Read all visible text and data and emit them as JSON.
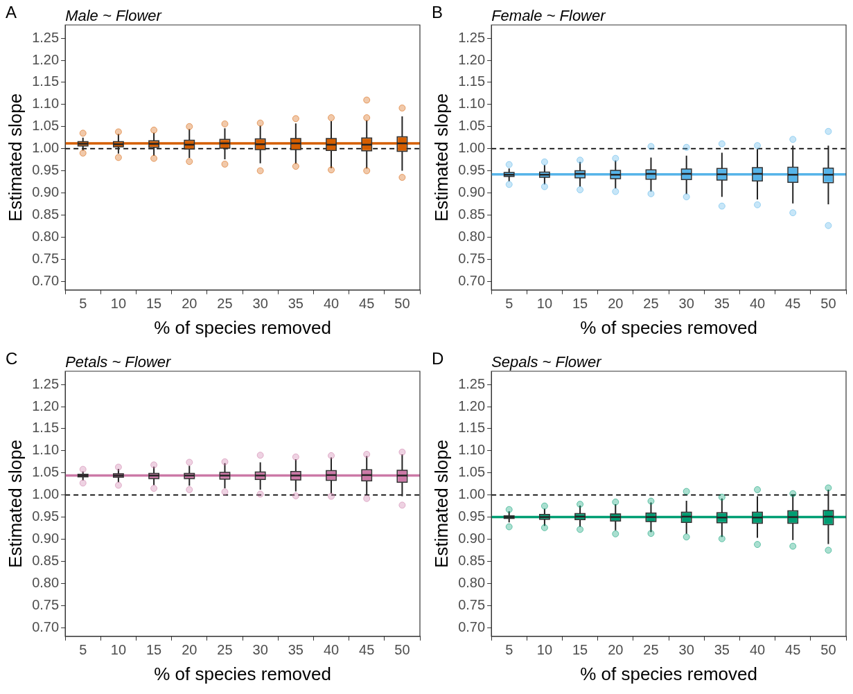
{
  "chart_data": [
    {
      "type": "box",
      "title": "Male ~ Flower",
      "annotations": [
        "A"
      ],
      "xlabel": "% of species removed",
      "ylabel": "Estimated slope",
      "categories": [
        "5",
        "10",
        "15",
        "20",
        "25",
        "30",
        "35",
        "40",
        "45",
        "50"
      ],
      "series": [
        {
          "color": "#d55e00",
          "boxes": [
            {
              "low": 0.996,
              "q1": 1.006,
              "median": 1.011,
              "q3": 1.016,
              "high": 1.025,
              "outliers": [
                1.035,
                0.99
              ]
            },
            {
              "low": 0.989,
              "q1": 1.004,
              "median": 1.01,
              "q3": 1.016,
              "high": 1.033,
              "outliers": [
                1.038,
                0.98
              ]
            },
            {
              "low": 0.984,
              "q1": 1.003,
              "median": 1.011,
              "q3": 1.018,
              "high": 1.036,
              "outliers": [
                1.042,
                0.978
              ]
            },
            {
              "low": 0.979,
              "q1": 0.999,
              "median": 1.009,
              "q3": 1.019,
              "high": 1.044,
              "outliers": [
                1.05,
                0.971
              ]
            },
            {
              "low": 0.976,
              "q1": 1.001,
              "median": 1.012,
              "q3": 1.021,
              "high": 1.046,
              "outliers": [
                1.056,
                0.965
              ]
            },
            {
              "low": 0.967,
              "q1": 0.998,
              "median": 1.01,
              "q3": 1.022,
              "high": 1.052,
              "outliers": [
                1.058,
                0.95
              ]
            },
            {
              "low": 0.966,
              "q1": 0.998,
              "median": 1.012,
              "q3": 1.023,
              "high": 1.057,
              "outliers": [
                1.068,
                0.96
              ]
            },
            {
              "low": 0.956,
              "q1": 0.996,
              "median": 1.009,
              "q3": 1.023,
              "high": 1.062,
              "outliers": [
                1.07,
                0.952
              ]
            },
            {
              "low": 0.955,
              "q1": 0.995,
              "median": 1.009,
              "q3": 1.024,
              "high": 1.064,
              "outliers": [
                1.11,
                1.07,
                0.95
              ]
            },
            {
              "low": 0.95,
              "q1": 0.994,
              "median": 1.012,
              "q3": 1.027,
              "high": 1.073,
              "outliers": [
                1.092,
                0.935
              ]
            }
          ]
        }
      ],
      "ylim": [
        0.68,
        1.28
      ],
      "yticks": [
        {
          "value": 0.7,
          "label": "0.70"
        },
        {
          "value": 0.75,
          "label": "0.75"
        },
        {
          "value": 0.8,
          "label": "0.80"
        },
        {
          "value": 0.85,
          "label": "0.85"
        },
        {
          "value": 0.9,
          "label": "0.90"
        },
        {
          "value": 0.95,
          "label": "0.95"
        },
        {
          "value": 1,
          "label": "1.00"
        },
        {
          "value": 1.05,
          "label": "1.05"
        },
        {
          "value": 1.1,
          "label": "1.10"
        },
        {
          "value": 1.15,
          "label": "1.15"
        },
        {
          "value": 1.2,
          "label": "1.20"
        },
        {
          "value": 1.25,
          "label": "1.25"
        }
      ],
      "ref_lines": [
        {
          "axis": "y",
          "value": 1.012,
          "color": "#d55e00",
          "line_style": "solid"
        },
        {
          "axis": "y",
          "value": 1,
          "color": "#000000",
          "line_style": "dashed"
        }
      ],
      "marker": "circle"
    },
    {
      "type": "box",
      "title": "Female ~ Flower",
      "annotations": [
        "B"
      ],
      "xlabel": "% of species removed",
      "ylabel": "Estimated slope",
      "categories": [
        "5",
        "10",
        "15",
        "20",
        "25",
        "30",
        "35",
        "40",
        "45",
        "50"
      ],
      "series": [
        {
          "color": "#56b4e9",
          "boxes": [
            {
              "low": 0.926,
              "q1": 0.937,
              "median": 0.941,
              "q3": 0.946,
              "high": 0.955,
              "outliers": [
                0.964,
                0.919
              ]
            },
            {
              "low": 0.919,
              "q1": 0.935,
              "median": 0.941,
              "q3": 0.947,
              "high": 0.963,
              "outliers": [
                0.97,
                0.914
              ]
            },
            {
              "low": 0.914,
              "q1": 0.934,
              "median": 0.943,
              "q3": 0.95,
              "high": 0.97,
              "outliers": [
                0.974,
                0.907
              ]
            },
            {
              "low": 0.91,
              "q1": 0.932,
              "median": 0.941,
              "q3": 0.951,
              "high": 0.973,
              "outliers": [
                0.978,
                0.903
              ]
            },
            {
              "low": 0.903,
              "q1": 0.931,
              "median": 0.943,
              "q3": 0.952,
              "high": 0.98,
              "outliers": [
                1.005,
                0.898
              ]
            },
            {
              "low": 0.897,
              "q1": 0.93,
              "median": 0.943,
              "q3": 0.954,
              "high": 0.984,
              "outliers": [
                1.003,
                0.891
              ]
            },
            {
              "low": 0.891,
              "q1": 0.929,
              "median": 0.942,
              "q3": 0.955,
              "high": 0.991,
              "outliers": [
                1.011,
                0.87
              ]
            },
            {
              "low": 0.885,
              "q1": 0.927,
              "median": 0.943,
              "q3": 0.957,
              "high": 0.999,
              "outliers": [
                1.007,
                0.873
              ]
            },
            {
              "low": 0.876,
              "q1": 0.924,
              "median": 0.941,
              "q3": 0.958,
              "high": 1.007,
              "outliers": [
                1.021,
                0.855
              ]
            },
            {
              "low": 0.874,
              "q1": 0.923,
              "median": 0.941,
              "q3": 0.956,
              "high": 1.007,
              "outliers": [
                1.039,
                0.826
              ]
            }
          ]
        }
      ],
      "ylim": [
        0.68,
        1.28
      ],
      "yticks": [
        {
          "value": 0.7,
          "label": "0.70"
        },
        {
          "value": 0.75,
          "label": "0.75"
        },
        {
          "value": 0.8,
          "label": "0.80"
        },
        {
          "value": 0.85,
          "label": "0.85"
        },
        {
          "value": 0.9,
          "label": "0.90"
        },
        {
          "value": 0.95,
          "label": "0.95"
        },
        {
          "value": 1,
          "label": "1.00"
        },
        {
          "value": 1.05,
          "label": "1.05"
        },
        {
          "value": 1.1,
          "label": "1.10"
        },
        {
          "value": 1.15,
          "label": "1.15"
        },
        {
          "value": 1.2,
          "label": "1.20"
        },
        {
          "value": 1.25,
          "label": "1.25"
        }
      ],
      "ref_lines": [
        {
          "axis": "y",
          "value": 0.942,
          "color": "#56b4e9",
          "line_style": "solid"
        },
        {
          "axis": "y",
          "value": 1,
          "color": "#000000",
          "line_style": "dashed"
        }
      ],
      "marker": "circle"
    },
    {
      "type": "box",
      "title": "Petals ~ Flower",
      "annotations": [
        "C"
      ],
      "xlabel": "% of species removed",
      "ylabel": "Estimated slope",
      "categories": [
        "5",
        "10",
        "15",
        "20",
        "25",
        "30",
        "35",
        "40",
        "45",
        "50"
      ],
      "series": [
        {
          "color": "#cc79a7",
          "boxes": [
            {
              "low": 1.033,
              "q1": 1.041,
              "median": 1.044,
              "q3": 1.047,
              "high": 1.053,
              "outliers": [
                1.058,
                1.027
              ]
            },
            {
              "low": 1.029,
              "q1": 1.04,
              "median": 1.044,
              "q3": 1.048,
              "high": 1.059,
              "outliers": [
                1.063,
                1.022
              ]
            },
            {
              "low": 1.022,
              "q1": 1.037,
              "median": 1.044,
              "q3": 1.049,
              "high": 1.064,
              "outliers": [
                1.068,
                1.015
              ]
            },
            {
              "low": 1.021,
              "q1": 1.037,
              "median": 1.044,
              "q3": 1.049,
              "high": 1.066,
              "outliers": [
                1.074,
                1.012
              ]
            },
            {
              "low": 1.015,
              "q1": 1.036,
              "median": 1.044,
              "q3": 1.051,
              "high": 1.072,
              "outliers": [
                1.075,
                1.007
              ]
            },
            {
              "low": 1.012,
              "q1": 1.035,
              "median": 1.044,
              "q3": 1.052,
              "high": 1.074,
              "outliers": [
                1.09,
                1.002
              ]
            },
            {
              "low": 1.008,
              "q1": 1.034,
              "median": 1.044,
              "q3": 1.053,
              "high": 1.081,
              "outliers": [
                1.086,
                0.998
              ]
            },
            {
              "low": 1.003,
              "q1": 1.033,
              "median": 1.045,
              "q3": 1.055,
              "high": 1.085,
              "outliers": [
                1.089,
                0.997
              ]
            },
            {
              "low": 1.0,
              "q1": 1.032,
              "median": 1.045,
              "q3": 1.057,
              "high": 1.088,
              "outliers": [
                1.092,
                0.992
              ]
            },
            {
              "low": 0.997,
              "q1": 1.029,
              "median": 1.044,
              "q3": 1.056,
              "high": 1.092,
              "outliers": [
                1.097,
                0.977
              ]
            }
          ]
        }
      ],
      "ylim": [
        0.68,
        1.28
      ],
      "yticks": [
        {
          "value": 0.7,
          "label": "0.70"
        },
        {
          "value": 0.75,
          "label": "0.75"
        },
        {
          "value": 0.8,
          "label": "0.80"
        },
        {
          "value": 0.85,
          "label": "0.85"
        },
        {
          "value": 0.9,
          "label": "0.90"
        },
        {
          "value": 0.95,
          "label": "0.95"
        },
        {
          "value": 1,
          "label": "1.00"
        },
        {
          "value": 1.05,
          "label": "1.05"
        },
        {
          "value": 1.1,
          "label": "1.10"
        },
        {
          "value": 1.15,
          "label": "1.15"
        },
        {
          "value": 1.2,
          "label": "1.20"
        },
        {
          "value": 1.25,
          "label": "1.25"
        }
      ],
      "ref_lines": [
        {
          "axis": "y",
          "value": 1.044,
          "color": "#cc79a7",
          "line_style": "solid"
        },
        {
          "axis": "y",
          "value": 1,
          "color": "#000000",
          "line_style": "dashed"
        }
      ],
      "marker": "circle"
    },
    {
      "type": "box",
      "title": "Sepals ~ Flower",
      "annotations": [
        "D"
      ],
      "xlabel": "% of species removed",
      "ylabel": "Estimated slope",
      "categories": [
        "5",
        "10",
        "15",
        "20",
        "25",
        "30",
        "35",
        "40",
        "45",
        "50"
      ],
      "series": [
        {
          "color": "#009e73",
          "boxes": [
            {
              "low": 0.938,
              "q1": 0.947,
              "median": 0.95,
              "q3": 0.953,
              "high": 0.963,
              "outliers": [
                0.967,
                0.928
              ]
            },
            {
              "low": 0.93,
              "q1": 0.945,
              "median": 0.95,
              "q3": 0.956,
              "high": 0.969,
              "outliers": [
                0.975,
                0.926
              ]
            },
            {
              "low": 0.928,
              "q1": 0.944,
              "median": 0.951,
              "q3": 0.958,
              "high": 0.976,
              "outliers": [
                0.979,
                0.922
              ]
            },
            {
              "low": 0.92,
              "q1": 0.941,
              "median": 0.95,
              "q3": 0.957,
              "high": 0.979,
              "outliers": [
                0.984,
                0.912
              ]
            },
            {
              "low": 0.916,
              "q1": 0.94,
              "median": 0.95,
              "q3": 0.959,
              "high": 0.983,
              "outliers": [
                0.986,
                0.913
              ]
            },
            {
              "low": 0.912,
              "q1": 0.938,
              "median": 0.951,
              "q3": 0.961,
              "high": 0.987,
              "outliers": [
                1.008,
                0.905
              ]
            },
            {
              "low": 0.905,
              "q1": 0.937,
              "median": 0.949,
              "q3": 0.96,
              "high": 0.992,
              "outliers": [
                0.995,
                0.901
              ]
            },
            {
              "low": 0.903,
              "q1": 0.936,
              "median": 0.949,
              "q3": 0.961,
              "high": 0.997,
              "outliers": [
                1.012,
                0.888
              ]
            },
            {
              "low": 0.898,
              "q1": 0.936,
              "median": 0.95,
              "q3": 0.964,
              "high": 1.0,
              "outliers": [
                1.003,
                0.884
              ]
            },
            {
              "low": 0.889,
              "q1": 0.933,
              "median": 0.951,
              "q3": 0.965,
              "high": 1.012,
              "outliers": [
                1.016,
                0.875
              ]
            }
          ]
        }
      ],
      "ylim": [
        0.68,
        1.28
      ],
      "yticks": [
        {
          "value": 0.7,
          "label": "0.70"
        },
        {
          "value": 0.75,
          "label": "0.75"
        },
        {
          "value": 0.8,
          "label": "0.80"
        },
        {
          "value": 0.85,
          "label": "0.85"
        },
        {
          "value": 0.9,
          "label": "0.90"
        },
        {
          "value": 0.95,
          "label": "0.95"
        },
        {
          "value": 1,
          "label": "1.00"
        },
        {
          "value": 1.05,
          "label": "1.05"
        },
        {
          "value": 1.1,
          "label": "1.10"
        },
        {
          "value": 1.15,
          "label": "1.15"
        },
        {
          "value": 1.2,
          "label": "1.20"
        },
        {
          "value": 1.25,
          "label": "1.25"
        }
      ],
      "ref_lines": [
        {
          "axis": "y",
          "value": 0.95,
          "color": "#009e73",
          "line_style": "solid"
        },
        {
          "axis": "y",
          "value": 1,
          "color": "#000000",
          "line_style": "dashed"
        }
      ],
      "marker": "circle"
    }
  ]
}
